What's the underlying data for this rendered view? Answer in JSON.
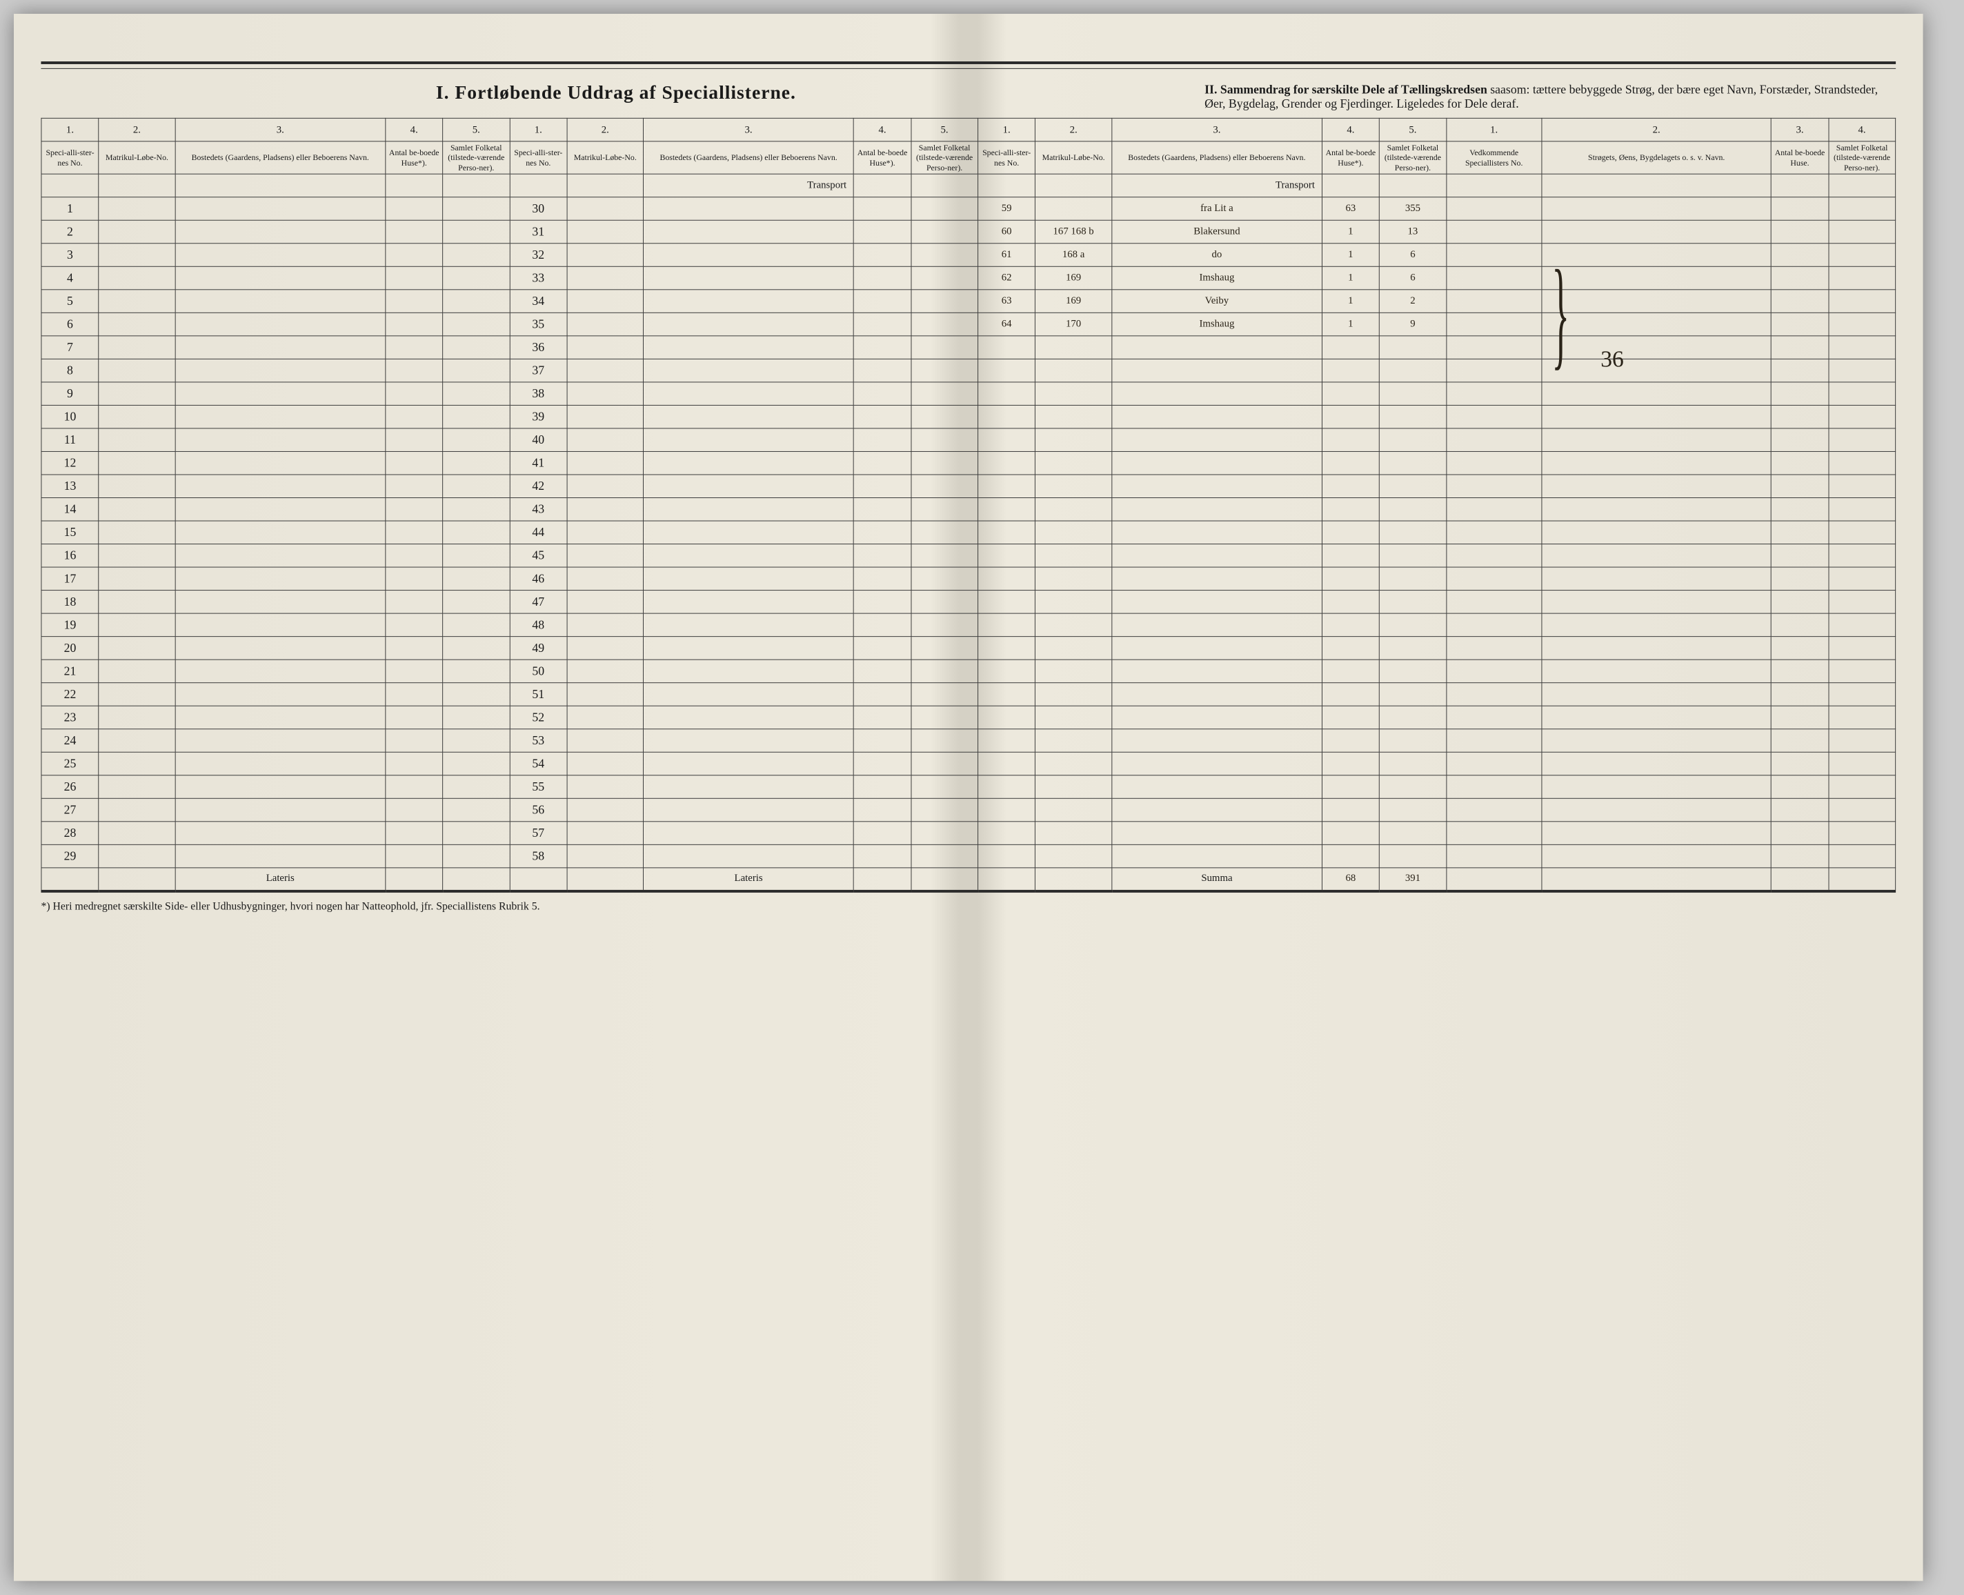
{
  "header": {
    "section_I": "I.  Fortløbende Uddrag af Speciallisterne.",
    "section_II_bold": "II.  Sammendrag for særskilte Dele af Tællingskredsen",
    "section_II_rest": " saasom: tættere bebyggede Strøg, der bære eget Navn, Forstæder, Strandsteder, Øer, Bygdelag, Grender og Fjerdinger. Ligeledes for Dele deraf."
  },
  "col_nums": [
    "1.",
    "2.",
    "3.",
    "4.",
    "5.",
    "1.",
    "2.",
    "3.",
    "4.",
    "5.",
    "1.",
    "2.",
    "3.",
    "4.",
    "5.",
    "1.",
    "2.",
    "3.",
    "4."
  ],
  "col_heads": {
    "spec_no": "Speci-alli-ster-nes No.",
    "matr": "Matrikul-Løbe-No.",
    "bosted": "Bostedets (Gaardens, Pladsens) eller Beboerens Navn.",
    "antal": "Antal be-boede Huse*).",
    "folketal": "Samlet Folketal (tilstede-værende Perso-ner).",
    "vedk": "Vedkommende Speciallisters No.",
    "strog": "Strøgets, Øens, Bygdelagets o. s. v. Navn.",
    "antal_huse": "Antal be-boede Huse.",
    "folketal2": "Samlet Folketal (tilstede-værende Perso-ner)."
  },
  "transport_label": "Transport",
  "lateris_label": "Lateris",
  "summa_label": "Summa",
  "footnote": "*) Heri medregnet særskilte Side- eller Udhusbygninger, hvori nogen har Natteophold, jfr. Speciallistens Rubrik 5.",
  "left_rows": [
    1,
    2,
    3,
    4,
    5,
    6,
    7,
    8,
    9,
    10,
    11,
    12,
    13,
    14,
    15,
    16,
    17,
    18,
    19,
    20,
    21,
    22,
    23,
    24,
    25,
    26,
    27,
    28,
    29
  ],
  "mid_rows": [
    30,
    31,
    32,
    33,
    34,
    35,
    36,
    37,
    38,
    39,
    40,
    41,
    42,
    43,
    44,
    45,
    46,
    47,
    48,
    49,
    50,
    51,
    52,
    53,
    54,
    55,
    56,
    57,
    58
  ],
  "right_entries": [
    {
      "no": "59",
      "matr": "",
      "name": "fra Lit a",
      "huse": "63",
      "folk": "355"
    },
    {
      "no": "60",
      "matr": "167 168 b",
      "name": "Blakersund",
      "huse": "1",
      "folk": "13"
    },
    {
      "no": "61",
      "matr": "168 a",
      "name": "do",
      "huse": "1",
      "folk": "6"
    },
    {
      "no": "62",
      "matr": "169",
      "name": "Imshaug",
      "huse": "1",
      "folk": "6"
    },
    {
      "no": "63",
      "matr": "169",
      "name": "Veiby",
      "huse": "1",
      "folk": "2"
    },
    {
      "no": "64",
      "matr": "170",
      "name": "Imshaug",
      "huse": "1",
      "folk": "9"
    }
  ],
  "summa_vals": {
    "huse": "68",
    "folk": "391"
  },
  "annotation_36": "36",
  "colors": {
    "paper": "#ede9dd",
    "fold": "#d5d1c5",
    "ink": "#1a1a1a",
    "handwriting": "#2a2318"
  }
}
